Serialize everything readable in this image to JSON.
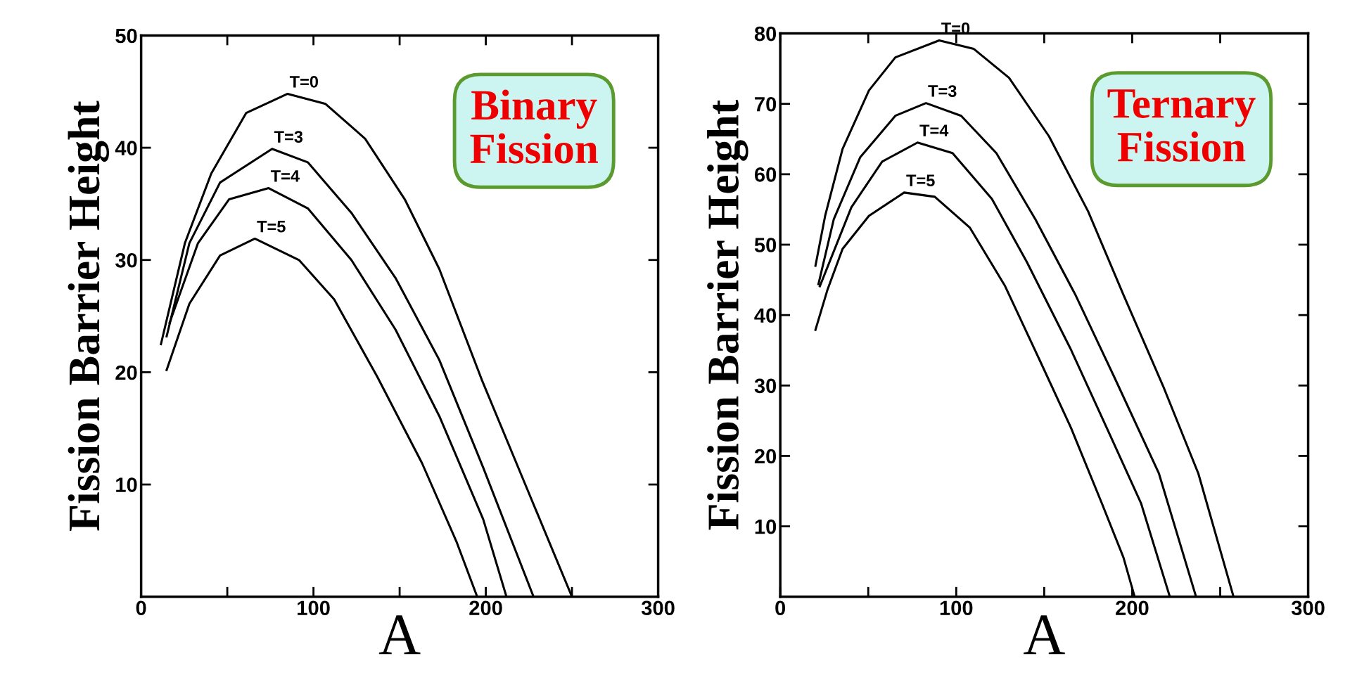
{
  "chart_data": [
    {
      "type": "line",
      "xlabel": "A",
      "ylabel": "Fission Barrier Height",
      "xlim": [
        0,
        300
      ],
      "ylim": [
        0,
        50
      ],
      "xticks": [
        0,
        {
          "value": 50,
          "label": null
        },
        100,
        {
          "value": 150,
          "label": null
        },
        200,
        {
          "value": 250,
          "label": null
        },
        300
      ],
      "yticks": [
        10,
        20,
        30,
        40,
        50
      ],
      "grid": false,
      "legend": false,
      "marker": "none",
      "line_style": "solid",
      "series": [
        {
          "name": "T=0",
          "color": "#000000",
          "x": [
            11.5,
            25.4,
            40.7,
            61,
            85,
            107,
            130,
            153,
            173,
            198,
            224,
            250
          ],
          "values": [
            22.5,
            31.5,
            37.7,
            43.1,
            44.8,
            43.9,
            40.8,
            35.4,
            29.2,
            19.2,
            9.6,
            0
          ]
        },
        {
          "name": "T=3",
          "color": "#000000",
          "x": [
            14.8,
            28,
            45.8,
            76,
            96.7,
            122,
            147.6,
            173,
            198.5,
            227.7
          ],
          "values": [
            23.2,
            31.5,
            36.9,
            39.9,
            38.7,
            34.2,
            28.4,
            21.1,
            11.5,
            0
          ]
        },
        {
          "name": "T=4",
          "color": "#000000",
          "x": [
            16.5,
            33,
            51,
            74,
            96.7,
            122,
            147.6,
            173,
            198.5,
            212
          ],
          "values": [
            24.4,
            31.5,
            35.4,
            36.4,
            34.6,
            30,
            23.8,
            16.1,
            6.9,
            0
          ]
        },
        {
          "name": "T=5",
          "color": "#000000",
          "x": [
            14.8,
            28,
            45.8,
            66,
            91.6,
            112,
            137,
            163,
            183,
            195
          ],
          "values": [
            20.2,
            26.1,
            30.4,
            31.9,
            30,
            26.5,
            19.6,
            11.9,
            4.9,
            0
          ]
        }
      ],
      "annotations": [
        "Binary\nFission"
      ]
    },
    {
      "type": "line",
      "xlabel": "A",
      "ylabel": "Fission Barrier Height",
      "xlim": [
        0,
        300
      ],
      "ylim": [
        0,
        80
      ],
      "xticks": [
        0,
        {
          "value": 50,
          "label": null
        },
        100,
        {
          "value": 150,
          "label": null
        },
        200,
        {
          "value": 250,
          "label": null
        },
        300
      ],
      "yticks": [
        10,
        20,
        30,
        40,
        50,
        60,
        70,
        80
      ],
      "grid": false,
      "legend": false,
      "marker": "none",
      "line_style": "solid",
      "series": [
        {
          "name": "T=0",
          "color": "#000000",
          "x": [
            20,
            25.5,
            35.4,
            50.4,
            65.4,
            90.3,
            110,
            130,
            152.7,
            175,
            195,
            217.6,
            237.6,
            257.6
          ],
          "values": [
            47,
            54.1,
            63.6,
            71.9,
            76.6,
            79,
            77.8,
            73.7,
            65.4,
            54.7,
            42.9,
            29.9,
            17.5,
            0
          ]
        },
        {
          "name": "T=3",
          "color": "#000000",
          "x": [
            21.7,
            30.4,
            45.4,
            65.4,
            82.8,
            102.8,
            122.8,
            145,
            167.7,
            190,
            215.2,
            236.3
          ],
          "values": [
            44.4,
            53.6,
            62.4,
            68.3,
            70.1,
            68.3,
            63,
            53.6,
            42.9,
            31.1,
            17.5,
            0
          ]
        },
        {
          "name": "T=4",
          "color": "#000000",
          "x": [
            22.5,
            40.4,
            57.9,
            78,
            97.9,
            120.3,
            140,
            165,
            187.7,
            205,
            221.4
          ],
          "values": [
            44.1,
            55.3,
            61.8,
            64.5,
            63,
            56.5,
            47.6,
            35.2,
            22.8,
            13.3,
            0
          ]
        },
        {
          "name": "T=5",
          "color": "#000000",
          "x": [
            20,
            26.7,
            35.4,
            50.4,
            70.4,
            87.8,
            107.8,
            127.8,
            147.8,
            165.2,
            182.7,
            195,
            201.4
          ],
          "values": [
            37.9,
            43.5,
            49.4,
            54.1,
            57.4,
            56.8,
            52.4,
            44.1,
            33.4,
            24,
            13.3,
            5.6,
            0
          ]
        }
      ],
      "annotations": [
        "Ternary\nFission"
      ]
    }
  ]
}
